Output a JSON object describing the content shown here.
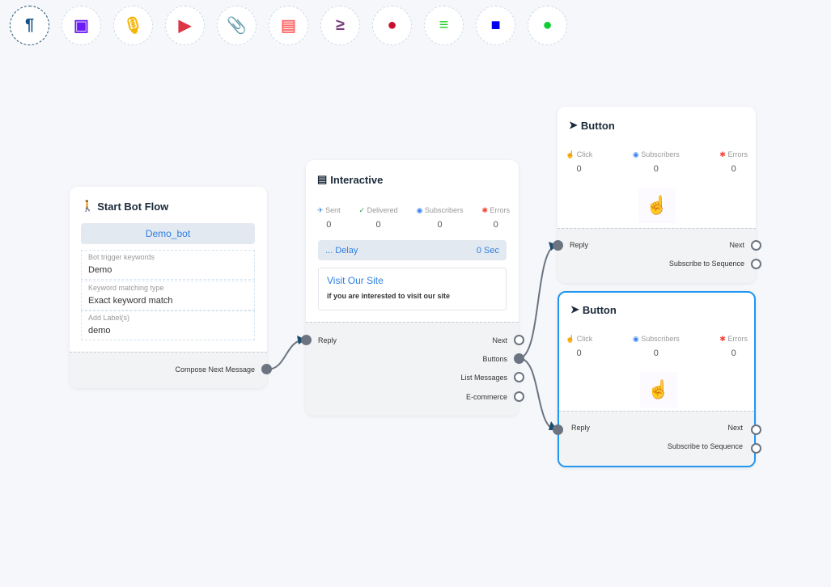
{
  "toolbar": [
    {
      "name": "paragraph-icon",
      "glyph": "¶",
      "color": "#0b4f8a"
    },
    {
      "name": "image-icon",
      "glyph": "▣",
      "color": "#6a1cf6"
    },
    {
      "name": "microphone-icon",
      "glyph": "🎙",
      "color": "#f5b400"
    },
    {
      "name": "youtube-icon",
      "glyph": "▶",
      "color": "#dc3545"
    },
    {
      "name": "paperclip-icon",
      "glyph": "📎",
      "color": "#1c9e48"
    },
    {
      "name": "newspaper-icon",
      "glyph": "▤",
      "color": "#ff6b6b"
    },
    {
      "name": "greater-equal-icon",
      "glyph": "≥",
      "color": "#7a3f7a"
    },
    {
      "name": "drop-icon",
      "glyph": "●",
      "color": "#c8102e"
    },
    {
      "name": "stack-overflow-icon",
      "glyph": "≡",
      "color": "#22cc22"
    },
    {
      "name": "robot-icon",
      "glyph": "■",
      "color": "#0000ee"
    },
    {
      "name": "palette-icon",
      "glyph": "●",
      "color": "#11cc33"
    }
  ],
  "start": {
    "title": "Start Bot Flow",
    "bot": "Demo_bot",
    "fields": [
      {
        "label": "Bot trigger keywords",
        "value": "Demo"
      },
      {
        "label": "Keyword matching type",
        "value": "Exact keyword match"
      },
      {
        "label": "Add Label(s)",
        "value": "demo"
      }
    ],
    "output": "Compose Next Message"
  },
  "interactive": {
    "title": "Interactive",
    "stats": [
      {
        "label": "Sent",
        "value": "0",
        "icon": "✈",
        "color": "#4a90e2"
      },
      {
        "label": "Delivered",
        "value": "0",
        "icon": "✓",
        "color": "#28a745"
      },
      {
        "label": "Subscribers",
        "value": "0",
        "icon": "◉",
        "color": "#3b82f6"
      },
      {
        "label": "Errors",
        "value": "0",
        "icon": "✱",
        "color": "#f44336"
      }
    ],
    "delay_label": "... Delay",
    "delay_value": "0 Sec",
    "card_title": "Visit Our Site",
    "card_text": "if you are interested to visit our site",
    "input": "Reply",
    "outputs": [
      "Next",
      "Buttons",
      "List Messages",
      "E-commerce"
    ]
  },
  "buttons": [
    {
      "title": "Button",
      "stats": [
        {
          "label": "Click",
          "value": "0",
          "icon": "☝",
          "color": "#4a90e2"
        },
        {
          "label": "Subscribers",
          "value": "0",
          "icon": "◉",
          "color": "#3b82f6"
        },
        {
          "label": "Errors",
          "value": "0",
          "icon": "✱",
          "color": "#f44336"
        }
      ],
      "input": "Reply",
      "outputs": [
        "Next",
        "Subscribe to Sequence"
      ]
    },
    {
      "title": "Button",
      "stats": [
        {
          "label": "Click",
          "value": "0",
          "icon": "☝",
          "color": "#4a90e2"
        },
        {
          "label": "Subscribers",
          "value": "0",
          "icon": "◉",
          "color": "#3b82f6"
        },
        {
          "label": "Errors",
          "value": "0",
          "icon": "✱",
          "color": "#f44336"
        }
      ],
      "input": "Reply",
      "outputs": [
        "Next",
        "Subscribe to Sequence"
      ]
    }
  ]
}
